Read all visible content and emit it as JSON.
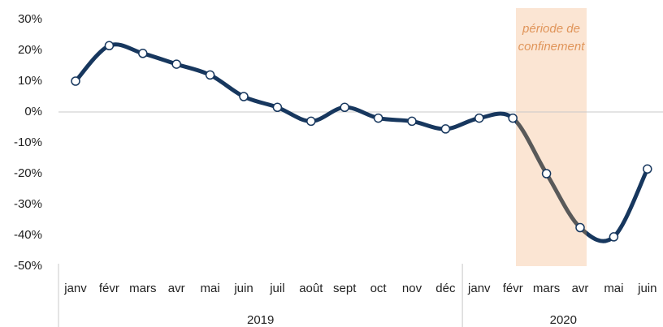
{
  "chart_data": {
    "type": "line",
    "categories": [
      "janv",
      "févr",
      "mars",
      "avr",
      "mai",
      "juin",
      "juil",
      "août",
      "sept",
      "oct",
      "nov",
      "déc",
      "janv",
      "févr",
      "mars",
      "avr",
      "mai",
      "juin"
    ],
    "x_groups": [
      "2019",
      "2020"
    ],
    "series": [
      {
        "color": "#17375e",
        "values": [
          10,
          21.5,
          19,
          15.5,
          12,
          5,
          1.5,
          -3,
          1.5,
          -2,
          -3,
          -5.5,
          -2,
          -2,
          -20,
          -37.5,
          -40.5,
          -18.5
        ]
      }
    ],
    "ylim": [
      -50,
      30
    ],
    "yticks": [
      {
        "value": -50,
        "label": "-50%"
      },
      {
        "value": -40,
        "label": "-40%"
      },
      {
        "value": -30,
        "label": "-30%"
      },
      {
        "value": -20,
        "label": "-20%"
      },
      {
        "value": -10,
        "label": "-10%"
      },
      {
        "value": 0,
        "label": "0%"
      },
      {
        "value": 10,
        "label": "10%"
      },
      {
        "value": 20,
        "label": "20%"
      },
      {
        "value": 30,
        "label": "30%"
      }
    ],
    "grid": false,
    "annotation": {
      "lines": [
        "période de",
        "confinement"
      ],
      "color": "#e0955a",
      "shade_color": "#fbe5d3",
      "line_color": "#595959"
    }
  }
}
